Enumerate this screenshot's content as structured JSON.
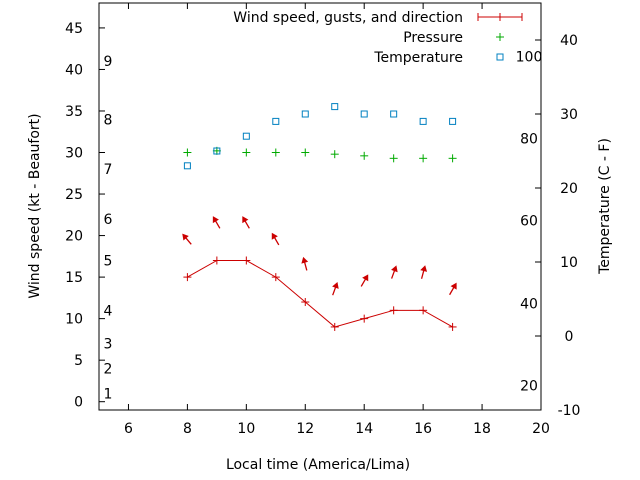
{
  "chart_data": {
    "type": "line",
    "xlabel": "Local time (America/Lima)",
    "ylabel": "Wind speed (kt - Beaufort)",
    "y2label": "Temperature (C - F)",
    "xlim": [
      5,
      20
    ],
    "x_ticks": [
      6,
      8,
      10,
      12,
      14,
      16,
      18,
      20
    ],
    "ylim": [
      -1,
      48
    ],
    "y_ticks": [
      0,
      5,
      10,
      15,
      20,
      25,
      30,
      35,
      40,
      45
    ],
    "y2lim": [
      -10,
      45
    ],
    "y2_ticks": [
      -10,
      0,
      10,
      20,
      30,
      40
    ],
    "beaufort_scale": [
      {
        "label": "1",
        "kt": 1
      },
      {
        "label": "2",
        "kt": 4
      },
      {
        "label": "3",
        "kt": 7
      },
      {
        "label": "4",
        "kt": 11
      },
      {
        "label": "5",
        "kt": 17
      },
      {
        "label": "6",
        "kt": 22
      },
      {
        "label": "7",
        "kt": 28
      },
      {
        "label": "8",
        "kt": 34
      },
      {
        "label": "9",
        "kt": 41
      }
    ],
    "fahrenheit_scale": [
      {
        "label": "20",
        "celsius": -6.7
      },
      {
        "label": "40",
        "celsius": 4.4
      },
      {
        "label": "60",
        "celsius": 15.6
      },
      {
        "label": "80",
        "celsius": 26.7
      },
      {
        "label": "100",
        "celsius": 37.8
      }
    ],
    "legend_position": "top-right",
    "grid": false,
    "series": [
      {
        "name": "Wind speed, gusts, and direction",
        "color": "#cc0000",
        "marker": "plus",
        "line": true,
        "axis": "left",
        "x": [
          8,
          9,
          10,
          11,
          12,
          13,
          14,
          15,
          16,
          17
        ],
        "y": [
          15,
          17,
          17,
          15,
          12,
          9,
          10,
          11,
          11,
          9
        ],
        "direction_arrows": {
          "y": [
            19.5,
            21.5,
            21.5,
            19.5,
            16.5,
            13.5,
            14.5,
            15.5,
            15.5,
            13.5
          ],
          "tilt_deg": [
            -40,
            -30,
            -30,
            -30,
            -15,
            20,
            30,
            20,
            15,
            30
          ]
        }
      },
      {
        "name": "Pressure",
        "color": "#00aa00",
        "marker": "plus",
        "line": false,
        "axis": "left",
        "x": [
          8,
          9,
          10,
          11,
          12,
          13,
          14,
          15,
          16,
          17
        ],
        "y": [
          30,
          30.2,
          30,
          30,
          30,
          29.8,
          29.6,
          29.3,
          29.3,
          29.3
        ]
      },
      {
        "name": "Temperature",
        "color": "#0080c0",
        "marker": "square",
        "line": false,
        "axis": "right",
        "x": [
          8,
          9,
          10,
          11,
          12,
          13,
          14,
          15,
          16,
          17
        ],
        "y": [
          23,
          25,
          27,
          29,
          30,
          31,
          30,
          30,
          29,
          29
        ]
      }
    ]
  }
}
